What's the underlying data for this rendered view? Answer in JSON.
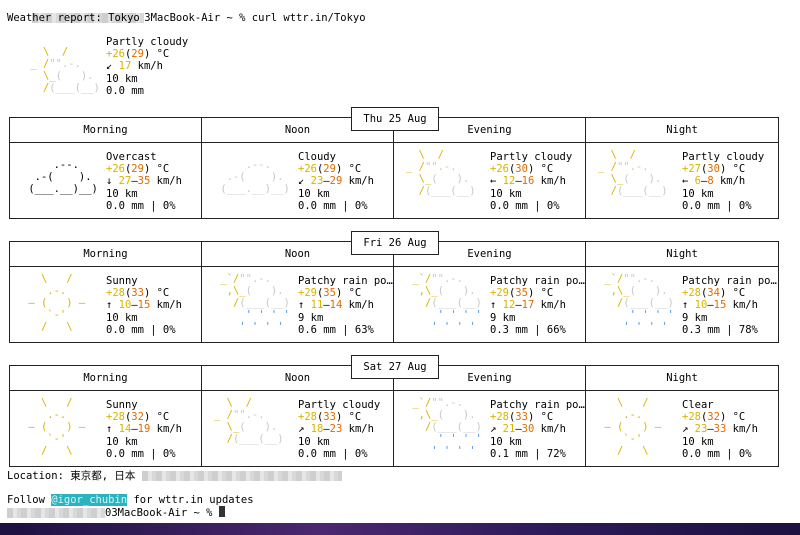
{
  "terminal": {
    "prompt_host": "3MacBook-Air ~ % curl wttr.in/Tokyo",
    "header": "Weather report: Tokyo",
    "location_label": "Location: 東京都, 日本",
    "follow_prefix": "Follow ",
    "follow_handle": "@igor_chubin",
    "follow_suffix": " for wttr.in updates",
    "prompt_end": "03MacBook-Air ~ %"
  },
  "current": {
    "condition": "Partly cloudy",
    "temp_a": "+26",
    "temp_b": "29",
    "wind_arrow": "↙",
    "wind": "17",
    "wind_unit": "km/h",
    "visibility": "10 km",
    "precip": "0.0 mm"
  },
  "columns": [
    "Morning",
    "Noon",
    "Evening",
    "Night"
  ],
  "days": [
    {
      "date": "Thu 25 Aug",
      "cells": [
        {
          "art": "overcast",
          "condition": "Overcast",
          "t1": "+26",
          "t2": "29",
          "arrow": "↓",
          "w1": "27",
          "w2": "35",
          "vis": "10 km",
          "precip": "0.0 mm | 0%"
        },
        {
          "art": "cloudy",
          "condition": "Cloudy",
          "t1": "+26",
          "t2": "29",
          "arrow": "↙",
          "w1": "23",
          "w2": "29",
          "vis": "10 km",
          "precip": "0.0 mm | 0%"
        },
        {
          "art": "partly",
          "condition": "Partly cloudy",
          "t1": "+26",
          "t2": "30",
          "arrow": "←",
          "w1": "12",
          "w2": "16",
          "vis": "10 km",
          "precip": "0.0 mm | 0%"
        },
        {
          "art": "partly",
          "condition": "Partly cloudy",
          "t1": "+27",
          "t2": "30",
          "arrow": "←",
          "w1": "6",
          "w2": "8",
          "vis": "10 km",
          "precip": "0.0 mm | 0%"
        }
      ]
    },
    {
      "date": "Fri 26 Aug",
      "cells": [
        {
          "art": "sunny",
          "condition": "Sunny",
          "t1": "+28",
          "t2": "33",
          "arrow": "↑",
          "w1": "10",
          "w2": "15",
          "vis": "10 km",
          "precip": "0.0 mm | 0%"
        },
        {
          "art": "rain",
          "condition": "Patchy rain po…",
          "t1": "+29",
          "t2": "35",
          "arrow": "↑",
          "w1": "11",
          "w2": "14",
          "vis": "9 km",
          "precip": "0.6 mm | 63%"
        },
        {
          "art": "rain",
          "condition": "Patchy rain po…",
          "t1": "+29",
          "t2": "35",
          "arrow": "↑",
          "w1": "12",
          "w2": "17",
          "vis": "9 km",
          "precip": "0.3 mm | 66%"
        },
        {
          "art": "rain",
          "condition": "Patchy rain po…",
          "t1": "+28",
          "t2": "34",
          "arrow": "↑",
          "w1": "10",
          "w2": "15",
          "vis": "9 km",
          "precip": "0.3 mm | 78%"
        }
      ]
    },
    {
      "date": "Sat 27 Aug",
      "cells": [
        {
          "art": "sunny",
          "condition": "Sunny",
          "t1": "+28",
          "t2": "32",
          "arrow": "↑",
          "w1": "14",
          "w2": "19",
          "vis": "10 km",
          "precip": "0.0 mm | 0%"
        },
        {
          "art": "partly",
          "condition": "Partly cloudy",
          "t1": "+28",
          "t2": "33",
          "arrow": "↗",
          "w1": "18",
          "w2": "23",
          "vis": "10 km",
          "precip": "0.0 mm | 0%"
        },
        {
          "art": "rain",
          "condition": "Patchy rain po…",
          "t1": "+28",
          "t2": "33",
          "arrow": "↗",
          "w1": "21",
          "w2": "30",
          "vis": "10 km",
          "precip": "0.1 mm | 72%"
        },
        {
          "art": "sunny",
          "condition": "Clear",
          "t1": "+28",
          "t2": "32",
          "arrow": "↗",
          "w1": "23",
          "w2": "33",
          "vis": "10 km",
          "precip": "0.0 mm | 0%"
        }
      ]
    }
  ],
  "colors": {
    "sun": "#d8b400",
    "warm": "#e06b00",
    "cloud": "#c7c7c7",
    "rain": "#4a90e2",
    "handle_bg": "#2bb3c0"
  }
}
